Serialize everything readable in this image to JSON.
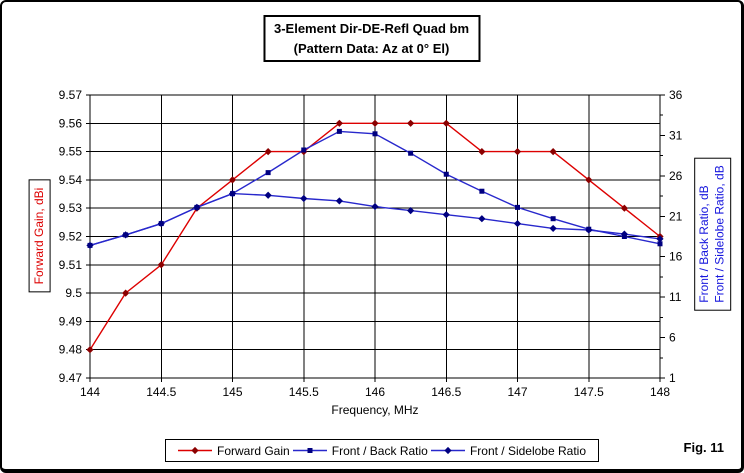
{
  "figure": {
    "label": "Fig. 11"
  },
  "chart_data": {
    "type": "line",
    "title_lines": [
      "3-Element Dir-DE-Refl Quad bm",
      "(Pattern Data: Az at 0° El)"
    ],
    "x_axis": {
      "label": "Frequency, MHz",
      "min": 144,
      "max": 148,
      "grid_step": 0.5,
      "tick_labels": [
        "144",
        "144.5",
        "145",
        "145.5",
        "146",
        "146.5",
        "147",
        "147.5",
        "148"
      ]
    },
    "y_axis_left": {
      "label": "Forward Gain, dBi",
      "min": 9.47,
      "max": 9.57,
      "grid_step": 0.01,
      "tick_labels": [
        "9.57",
        "9.56",
        "9.55",
        "9.54",
        "9.53",
        "9.52",
        "9.51",
        "9.5",
        "9.49",
        "9.48",
        "9.47"
      ],
      "color": "#dd0000"
    },
    "y_axis_right": {
      "label_lines": [
        "Front / Back Ratio,  dB",
        "Front / Sidelobe Ratio,  dB"
      ],
      "min": 1,
      "max": 36,
      "tick_step": 2.5,
      "label_step": 5,
      "tick_labels": [
        "36",
        "31",
        "26",
        "21",
        "16",
        "11",
        "6",
        "1"
      ],
      "color": "#1616dd"
    },
    "x": [
      144,
      144.25,
      144.5,
      144.75,
      145,
      145.25,
      145.5,
      145.75,
      146,
      146.25,
      146.5,
      146.75,
      147,
      147.25,
      147.5,
      147.75,
      148
    ],
    "series": [
      {
        "name": "Forward Gain",
        "axis": "left",
        "line_color": "#dd0000",
        "marker_color": "#8b0000",
        "marker": "diamond",
        "values": [
          9.48,
          9.5,
          9.51,
          9.53,
          9.54,
          9.55,
          9.55,
          9.56,
          9.56,
          9.56,
          9.56,
          9.55,
          9.55,
          9.55,
          9.54,
          9.53,
          9.52
        ]
      },
      {
        "name": "Front / Back Ratio",
        "axis": "right",
        "line_color": "#2828cc",
        "marker_color": "#000080",
        "marker": "square",
        "values": [
          17.4,
          18.7,
          20.1,
          22.1,
          23.8,
          26.4,
          29.2,
          31.5,
          31.2,
          28.8,
          26.2,
          24.1,
          22.1,
          20.7,
          19.4,
          18.5,
          17.6
        ]
      },
      {
        "name": "Front / Sidelobe Ratio",
        "axis": "right",
        "line_color": "#2828cc",
        "marker_color": "#000080",
        "marker": "diamond",
        "values": [
          17.4,
          18.7,
          20.1,
          22.1,
          23.8,
          23.6,
          23.2,
          22.9,
          22.2,
          21.7,
          21.2,
          20.7,
          20.1,
          19.5,
          19.3,
          18.8,
          18.2
        ]
      }
    ],
    "grid": {
      "horizontal": true,
      "vertical": true
    },
    "legend_position": "bottom"
  }
}
